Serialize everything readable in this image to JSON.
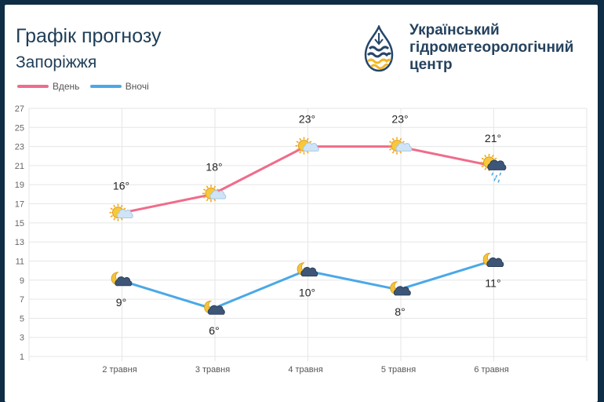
{
  "header": {
    "title": "Графік прогнозу",
    "city": "Запоріжжя",
    "org_line1": "Український",
    "org_line2": "гідрометеорологічний",
    "org_line3": "центр"
  },
  "colors": {
    "day": "#f06c8a",
    "night": "#4aa8e8",
    "grid": "#e6e6e6",
    "logo_blue": "#26466a",
    "logo_yellow": "#f2b827"
  },
  "chart_data": {
    "type": "line",
    "categories": [
      "2 травня",
      "3 травня",
      "4 травня",
      "5 травня",
      "6 травня"
    ],
    "series": [
      {
        "name": "Вдень",
        "values": [
          16,
          18,
          23,
          23,
          21
        ],
        "labels": [
          "16°",
          "18°",
          "23°",
          "23°",
          "21°"
        ],
        "icons": [
          "sun-cloud-icon",
          "sun-cloud-icon",
          "sun-cloud-icon",
          "sun-cloud-icon",
          "sun-rain-cloud-icon"
        ]
      },
      {
        "name": "Вночі",
        "values": [
          9,
          6,
          10,
          8,
          11
        ],
        "labels": [
          "9°",
          "6°",
          "10°",
          "8°",
          "11°"
        ],
        "icons": [
          "moon-cloud-icon",
          "moon-cloud-icon",
          "moon-cloud-icon",
          "moon-cloud-icon",
          "moon-cloud-icon"
        ]
      }
    ],
    "y_ticks": [
      1,
      3,
      5,
      7,
      9,
      11,
      13,
      15,
      17,
      19,
      21,
      23,
      25,
      27
    ],
    "ylim": [
      1,
      27
    ],
    "grid": true,
    "legend": "top-left"
  }
}
